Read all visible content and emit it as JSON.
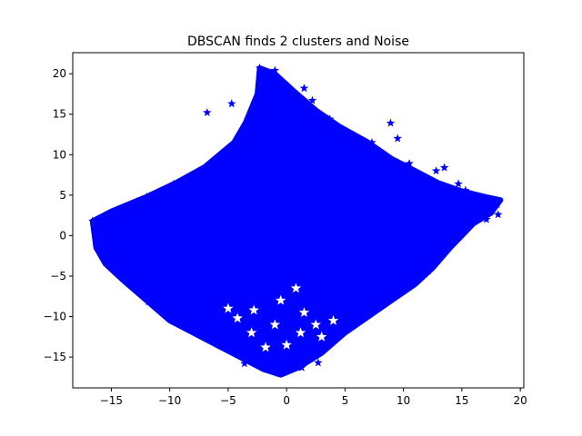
{
  "chart_data": {
    "type": "scatter",
    "title": "DBSCAN finds 2 clusters and Noise",
    "xlabel": "",
    "ylabel": "",
    "xlim": [
      -18.3,
      20.3
    ],
    "ylim": [
      -18.8,
      22.6
    ],
    "xticks": [
      -15,
      -10,
      -5,
      0,
      5,
      10,
      15,
      20
    ],
    "yticks": [
      -15,
      -10,
      -5,
      0,
      5,
      10,
      15,
      20
    ],
    "grid": false,
    "legend": "none",
    "marker": "star",
    "marker_color": "#0000ff",
    "region_outline": [
      [
        -16.6,
        1.8
      ],
      [
        -15.0,
        3.0
      ],
      [
        -12.0,
        4.8
      ],
      [
        -9.5,
        6.5
      ],
      [
        -7.0,
        8.5
      ],
      [
        -4.5,
        11.5
      ],
      [
        -3.5,
        14.0
      ],
      [
        -2.5,
        17.5
      ],
      [
        -2.3,
        20.7
      ],
      [
        -1.0,
        20.0
      ],
      [
        0.5,
        18.0
      ],
      [
        2.5,
        15.5
      ],
      [
        4.5,
        13.5
      ],
      [
        7.0,
        11.5
      ],
      [
        9.0,
        9.5
      ],
      [
        11.0,
        8.0
      ],
      [
        13.0,
        6.5
      ],
      [
        15.0,
        5.5
      ],
      [
        17.0,
        4.8
      ],
      [
        18.3,
        4.4
      ],
      [
        17.5,
        2.8
      ],
      [
        16.0,
        1.5
      ],
      [
        14.0,
        -1.5
      ],
      [
        12.5,
        -4.0
      ],
      [
        11.0,
        -6.0
      ],
      [
        9.0,
        -8.0
      ],
      [
        7.0,
        -10.0
      ],
      [
        5.0,
        -12.0
      ],
      [
        3.0,
        -14.5
      ],
      [
        1.0,
        -16.3
      ],
      [
        -0.5,
        -17.2
      ],
      [
        -2.0,
        -16.5
      ],
      [
        -4.0,
        -15.0
      ],
      [
        -6.0,
        -13.5
      ],
      [
        -8.0,
        -12.0
      ],
      [
        -10.0,
        -10.5
      ],
      [
        -12.0,
        -8.0
      ],
      [
        -14.0,
        -5.5
      ],
      [
        -15.5,
        -3.5
      ],
      [
        -16.3,
        -1.5
      ]
    ],
    "outliers": [
      [
        8.9,
        13.9
      ],
      [
        9.5,
        12.0
      ],
      [
        12.8,
        8.0
      ],
      [
        13.5,
        8.4
      ],
      [
        14.7,
        6.4
      ],
      [
        15.3,
        5.6
      ],
      [
        16.4,
        4.6
      ],
      [
        17.9,
        4.2
      ],
      [
        10.5,
        8.9
      ],
      [
        11.5,
        7.5
      ],
      [
        -16.6,
        1.8
      ],
      [
        -15.9,
        1.5
      ],
      [
        -14.6,
        -3.9
      ],
      [
        -15.3,
        -1.2
      ],
      [
        -2.3,
        20.7
      ],
      [
        -1.0,
        20.4
      ],
      [
        -6.8,
        15.2
      ],
      [
        -4.7,
        16.3
      ],
      [
        1.5,
        18.2
      ],
      [
        2.2,
        16.7
      ],
      [
        3.7,
        14.4
      ],
      [
        7.3,
        11.5
      ],
      [
        18.1,
        2.6
      ],
      [
        17.1,
        2.0
      ],
      [
        13.3,
        5.8
      ],
      [
        -0.7,
        -17.0
      ],
      [
        1.3,
        -16.3
      ],
      [
        2.7,
        -15.7
      ],
      [
        -3.6,
        -15.8
      ]
    ],
    "empty_pockets": [
      [
        -1.0,
        -11.0
      ],
      [
        1.5,
        -9.5
      ],
      [
        -3.0,
        -12.0
      ],
      [
        3.0,
        -12.5
      ],
      [
        0.0,
        -13.5
      ],
      [
        -1.8,
        -13.8
      ],
      [
        2.5,
        -11.0
      ],
      [
        -0.5,
        -8.0
      ],
      [
        1.2,
        -12.0
      ],
      [
        -4.2,
        -10.2
      ],
      [
        4.0,
        -10.5
      ],
      [
        -2.8,
        -9.2
      ],
      [
        -5.0,
        -9.0
      ],
      [
        0.8,
        -6.5
      ]
    ]
  }
}
